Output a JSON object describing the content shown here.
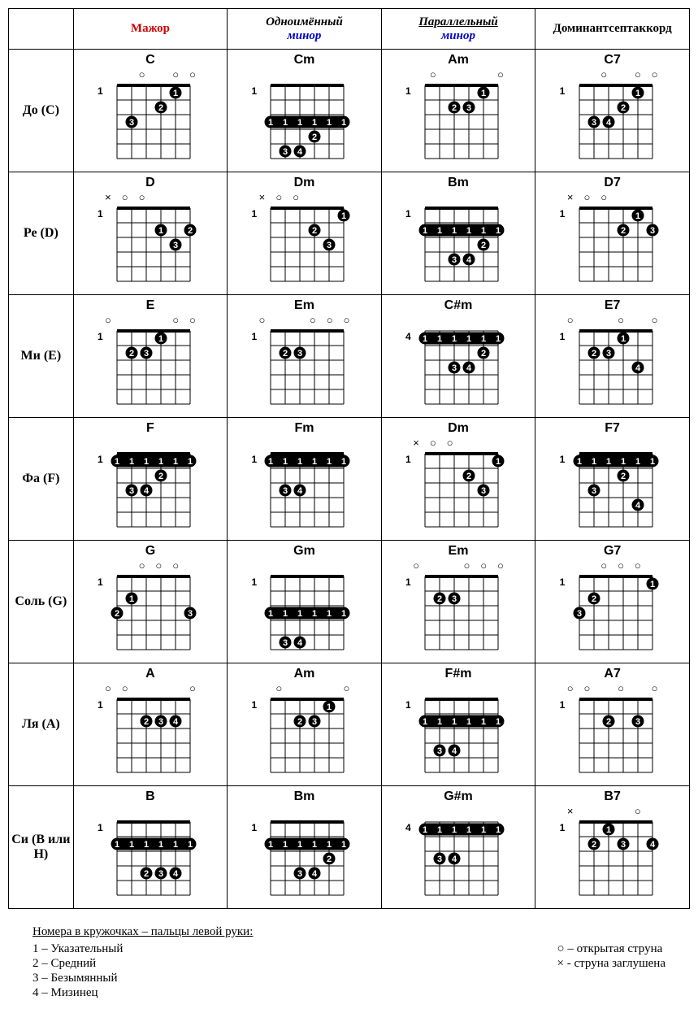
{
  "headers": {
    "major": "Мажор",
    "minor1_top": "Одноимённый",
    "minor1_bottom": "минор",
    "minor2_top": "Параллельный",
    "minor2_bottom": "минор",
    "dom7": "Доминантсептаккорд"
  },
  "rows": [
    {
      "label": "До (С)",
      "key": "C"
    },
    {
      "label": "Ре  (D)",
      "key": "D"
    },
    {
      "label": "Ми (Е)",
      "key": "E"
    },
    {
      "label": "Фа  (F)",
      "key": "F"
    },
    {
      "label": "Соль  (G)",
      "key": "G"
    },
    {
      "label": "Ля (А)",
      "key": "A"
    },
    {
      "label": "Си  (В или Н)",
      "key": "B"
    }
  ],
  "legend": {
    "title": "Номера в кружочках – пальцы левой руки:",
    "fingers": [
      "1 – Указательный",
      "2 – Средний",
      "3 – Безымянный",
      "4 – Мизинец"
    ],
    "open": "○ – открытая струна",
    "mute": "× - струна заглушена"
  },
  "diagram_style": {
    "grid_color": "#000000",
    "dot_fill": "#000000",
    "dot_text": "#ffffff",
    "dot_radius": 7.5,
    "string_spacing": 18,
    "fret_spacing": 18,
    "num_strings": 6,
    "num_frets": 5,
    "nut_thickness": 4,
    "line_thickness": 1
  },
  "chords": {
    "C": {
      "major": {
        "name": "C",
        "startFret": 1,
        "open": [
          "",
          "",
          "o",
          "",
          "o",
          "o"
        ],
        "dots": [
          [
            5,
            1,
            "1"
          ],
          [
            4,
            2,
            "2"
          ],
          [
            2,
            3,
            "3"
          ]
        ],
        "barre": null
      },
      "minor1": {
        "name": "Cm",
        "startFret": 1,
        "open": [
          "",
          "",
          "",
          "",
          "",
          ""
        ],
        "dots": [
          [
            4,
            4,
            "2"
          ],
          [
            2,
            5,
            "3"
          ],
          [
            3,
            5,
            "4"
          ]
        ],
        "barre": {
          "fret": 3,
          "from": 1,
          "to": 6,
          "label": "1"
        }
      },
      "minor2": {
        "name": "Am",
        "startFret": 1,
        "open": [
          "",
          "o",
          "",
          "",
          "",
          "o"
        ],
        "dots": [
          [
            5,
            1,
            "1"
          ],
          [
            3,
            2,
            "2"
          ],
          [
            4,
            2,
            "3"
          ]
        ],
        "barre": null
      },
      "dom7": {
        "name": "C7",
        "startFret": 1,
        "open": [
          "",
          "",
          "o",
          "",
          "o",
          "o"
        ],
        "dots": [
          [
            5,
            1,
            "1"
          ],
          [
            4,
            2,
            "2"
          ],
          [
            2,
            3,
            "3"
          ],
          [
            3,
            3,
            "4"
          ]
        ],
        "barre": null
      }
    },
    "D": {
      "major": {
        "name": "D",
        "startFret": 1,
        "open": [
          "x",
          "o",
          "o",
          "",
          "",
          ""
        ],
        "dots": [
          [
            4,
            2,
            "1"
          ],
          [
            6,
            2,
            "2"
          ],
          [
            5,
            3,
            "3"
          ]
        ],
        "barre": null
      },
      "minor1": {
        "name": "Dm",
        "startFret": 1,
        "open": [
          "x",
          "o",
          "o",
          "",
          "",
          ""
        ],
        "dots": [
          [
            6,
            1,
            "1"
          ],
          [
            4,
            2,
            "2"
          ],
          [
            5,
            3,
            "3"
          ]
        ],
        "barre": null
      },
      "minor2": {
        "name": "Bm",
        "startFret": 1,
        "open": [
          "",
          "",
          "",
          "",
          "",
          ""
        ],
        "dots": [
          [
            5,
            3,
            "2"
          ],
          [
            3,
            4,
            "3"
          ],
          [
            4,
            4,
            "4"
          ]
        ],
        "barre": {
          "fret": 2,
          "from": 1,
          "to": 6,
          "label": "1"
        }
      },
      "dom7": {
        "name": "D7",
        "startFret": 1,
        "open": [
          "x",
          "o",
          "o",
          "",
          "",
          ""
        ],
        "dots": [
          [
            5,
            1,
            "1"
          ],
          [
            4,
            2,
            "2"
          ],
          [
            6,
            2,
            "3"
          ]
        ],
        "barre": null
      }
    },
    "E": {
      "major": {
        "name": "E",
        "startFret": 1,
        "open": [
          "o",
          "",
          "",
          "",
          "o",
          "o"
        ],
        "dots": [
          [
            4,
            1,
            "1"
          ],
          [
            2,
            2,
            "2"
          ],
          [
            3,
            2,
            "3"
          ]
        ],
        "barre": null
      },
      "minor1": {
        "name": "Em",
        "startFret": 1,
        "open": [
          "o",
          "",
          "",
          "o",
          "o",
          "o"
        ],
        "dots": [
          [
            2,
            2,
            "2"
          ],
          [
            3,
            2,
            "3"
          ]
        ],
        "barre": null
      },
      "minor2": {
        "name": "C#m",
        "startFret": 4,
        "open": [
          "",
          "",
          "",
          "",
          "",
          ""
        ],
        "dots": [
          [
            5,
            2,
            "2"
          ],
          [
            3,
            3,
            "3"
          ],
          [
            4,
            3,
            "4"
          ]
        ],
        "barre": {
          "fret": 1,
          "from": 1,
          "to": 6,
          "label": "1"
        }
      },
      "dom7": {
        "name": "E7",
        "startFret": 1,
        "open": [
          "o",
          "",
          "",
          "o",
          "",
          "o"
        ],
        "dots": [
          [
            4,
            1,
            "1"
          ],
          [
            2,
            2,
            "2"
          ],
          [
            3,
            2,
            "3"
          ],
          [
            5,
            3,
            "4"
          ]
        ],
        "barre": null
      }
    },
    "F": {
      "major": {
        "name": "F",
        "startFret": 1,
        "open": [
          "",
          "",
          "",
          "",
          "",
          ""
        ],
        "dots": [
          [
            4,
            2,
            "2"
          ],
          [
            2,
            3,
            "3"
          ],
          [
            3,
            3,
            "4"
          ]
        ],
        "barre": {
          "fret": 1,
          "from": 1,
          "to": 6,
          "label": "1"
        }
      },
      "minor1": {
        "name": "Fm",
        "startFret": 1,
        "open": [
          "",
          "",
          "",
          "",
          "",
          ""
        ],
        "dots": [
          [
            2,
            3,
            "3"
          ],
          [
            3,
            3,
            "4"
          ]
        ],
        "barre": {
          "fret": 1,
          "from": 1,
          "to": 6,
          "label": "1"
        }
      },
      "minor2": {
        "name": "Dm",
        "startFret": 1,
        "open": [
          "x",
          "o",
          "o",
          "",
          "",
          ""
        ],
        "dots": [
          [
            6,
            1,
            "1"
          ],
          [
            4,
            2,
            "2"
          ],
          [
            5,
            3,
            "3"
          ]
        ],
        "barre": null
      },
      "dom7": {
        "name": "F7",
        "startFret": 1,
        "open": [
          "",
          "",
          "",
          "",
          "",
          ""
        ],
        "dots": [
          [
            4,
            2,
            "2"
          ],
          [
            2,
            3,
            "3"
          ],
          [
            5,
            4,
            "4"
          ]
        ],
        "barre": {
          "fret": 1,
          "from": 1,
          "to": 6,
          "label": "1"
        }
      }
    },
    "G": {
      "major": {
        "name": "G",
        "startFret": 1,
        "open": [
          "",
          "",
          "o",
          "o",
          "o",
          ""
        ],
        "dots": [
          [
            2,
            2,
            "1"
          ],
          [
            1,
            3,
            "2"
          ],
          [
            6,
            3,
            "3"
          ]
        ],
        "barre": null
      },
      "minor1": {
        "name": "Gm",
        "startFret": 1,
        "open": [
          "",
          "",
          "",
          "",
          "",
          ""
        ],
        "dots": [
          [
            2,
            5,
            "3"
          ],
          [
            3,
            5,
            "4"
          ]
        ],
        "barre": {
          "fret": 3,
          "from": 1,
          "to": 6,
          "label": "1"
        }
      },
      "minor2": {
        "name": "Em",
        "startFret": 1,
        "open": [
          "o",
          "",
          "",
          "o",
          "o",
          "o"
        ],
        "dots": [
          [
            2,
            2,
            "2"
          ],
          [
            3,
            2,
            "3"
          ]
        ],
        "barre": null
      },
      "dom7": {
        "name": "G7",
        "startFret": 1,
        "open": [
          "",
          "",
          "o",
          "o",
          "o",
          ""
        ],
        "dots": [
          [
            6,
            1,
            "1"
          ],
          [
            2,
            2,
            "2"
          ],
          [
            1,
            3,
            "3"
          ]
        ],
        "barre": null
      }
    },
    "A": {
      "major": {
        "name": "A",
        "startFret": 1,
        "open": [
          "o",
          "o",
          "",
          "",
          "",
          "o"
        ],
        "dots": [
          [
            3,
            2,
            "2"
          ],
          [
            4,
            2,
            "3"
          ],
          [
            5,
            2,
            "4"
          ]
        ],
        "barre": null
      },
      "minor1": {
        "name": "Am",
        "startFret": 1,
        "open": [
          "",
          "o",
          "",
          "",
          "",
          "o"
        ],
        "dots": [
          [
            5,
            1,
            "1"
          ],
          [
            3,
            2,
            "2"
          ],
          [
            4,
            2,
            "3"
          ]
        ],
        "barre": null
      },
      "minor2": {
        "name": "F#m",
        "startFret": 1,
        "open": [
          "",
          "",
          "",
          "",
          "",
          ""
        ],
        "dots": [
          [
            2,
            4,
            "3"
          ],
          [
            3,
            4,
            "4"
          ]
        ],
        "barre": {
          "fret": 2,
          "from": 1,
          "to": 6,
          "label": "1"
        }
      },
      "dom7": {
        "name": "A7",
        "startFret": 1,
        "open": [
          "o",
          "o",
          "",
          "o",
          "",
          "o"
        ],
        "dots": [
          [
            3,
            2,
            "2"
          ],
          [
            5,
            2,
            "3"
          ]
        ],
        "barre": null
      }
    },
    "B": {
      "major": {
        "name": "B",
        "startFret": 1,
        "open": [
          "",
          "",
          "",
          "",
          "",
          ""
        ],
        "dots": [
          [
            3,
            4,
            "2"
          ],
          [
            4,
            4,
            "3"
          ],
          [
            5,
            4,
            "4"
          ]
        ],
        "barre": {
          "fret": 2,
          "from": 1,
          "to": 6,
          "label": "1"
        }
      },
      "minor1": {
        "name": "Bm",
        "startFret": 1,
        "open": [
          "",
          "",
          "",
          "",
          "",
          ""
        ],
        "dots": [
          [
            5,
            3,
            "2"
          ],
          [
            3,
            4,
            "3"
          ],
          [
            4,
            4,
            "4"
          ]
        ],
        "barre": {
          "fret": 2,
          "from": 1,
          "to": 6,
          "label": "1"
        }
      },
      "minor2": {
        "name": "G#m",
        "startFret": 4,
        "open": [
          "",
          "",
          "",
          "",
          "",
          ""
        ],
        "dots": [
          [
            2,
            3,
            "3"
          ],
          [
            3,
            3,
            "4"
          ]
        ],
        "barre": {
          "fret": 1,
          "from": 1,
          "to": 6,
          "label": "1"
        }
      },
      "dom7": {
        "name": "B7",
        "startFret": 1,
        "open": [
          "x",
          "",
          "",
          "",
          "o",
          ""
        ],
        "dots": [
          [
            3,
            1,
            "1"
          ],
          [
            2,
            2,
            "2"
          ],
          [
            4,
            2,
            "3"
          ],
          [
            6,
            2,
            "4"
          ]
        ],
        "barre": null
      }
    }
  }
}
